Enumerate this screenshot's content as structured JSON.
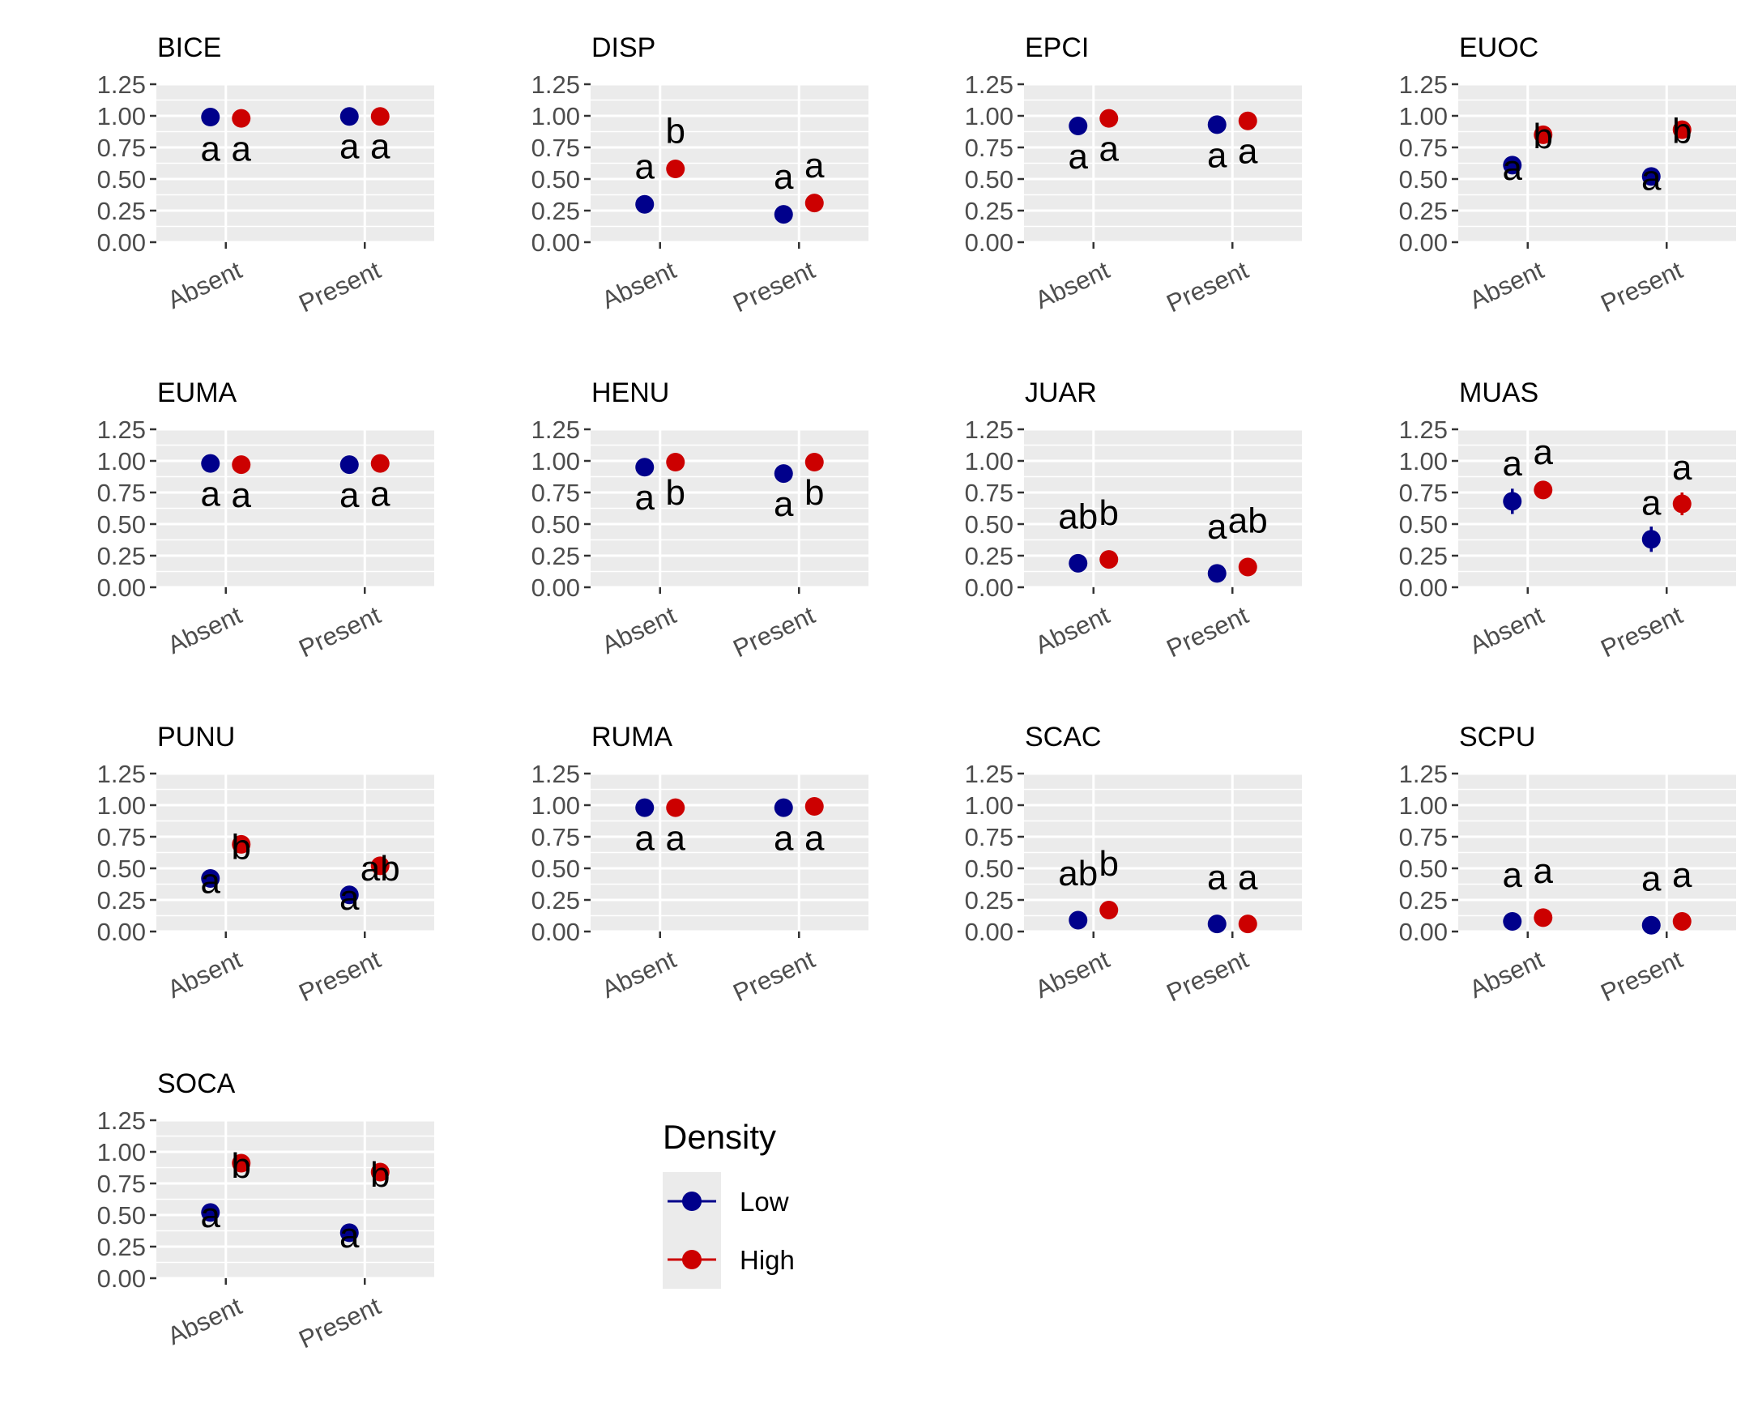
{
  "chart_data": {
    "type": "scatter",
    "description_kind": "faceted point-range plot",
    "categories": [
      "Absent",
      "Present"
    ],
    "ylim": [
      0,
      1.25
    ],
    "yticks": [
      "0.00",
      "0.25",
      "0.50",
      "0.75",
      "1.00",
      "1.25"
    ],
    "grid": true,
    "legend": {
      "title": "Density",
      "placement": "bottom-center",
      "entries": [
        {
          "name": "Low",
          "color": "#00008B"
        },
        {
          "name": "High",
          "color": "#CC0000"
        }
      ]
    },
    "series_names": [
      "Low",
      "High"
    ],
    "panels": [
      {
        "title": "BICE",
        "values": {
          "Low": [
            0.99,
            0.995
          ],
          "High": [
            0.98,
            0.995
          ]
        },
        "err": {
          "Low": [
            0,
            0
          ],
          "High": [
            0,
            0
          ]
        },
        "letters": {
          "Low": [
            "a",
            "a"
          ],
          "High": [
            "a",
            "a"
          ]
        },
        "letter_y": {
          "Low": [
            0.74,
            0.76
          ],
          "High": [
            0.74,
            0.76
          ]
        }
      },
      {
        "title": "DISP",
        "values": {
          "Low": [
            0.3,
            0.22
          ],
          "High": [
            0.58,
            0.31
          ]
        },
        "err": {
          "Low": [
            0,
            0
          ],
          "High": [
            0.02,
            0
          ]
        },
        "letters": {
          "Low": [
            "a",
            "a"
          ],
          "High": [
            "b",
            "a"
          ]
        },
        "letter_y": {
          "Low": [
            0.6,
            0.52
          ],
          "High": [
            0.88,
            0.61
          ]
        }
      },
      {
        "title": "EPCI",
        "values": {
          "Low": [
            0.92,
            0.93
          ],
          "High": [
            0.98,
            0.96
          ]
        },
        "err": {
          "Low": [
            0,
            0
          ],
          "High": [
            0,
            0
          ]
        },
        "letters": {
          "Low": [
            "a",
            "a"
          ],
          "High": [
            "a",
            "a"
          ]
        },
        "letter_y": {
          "Low": [
            0.68,
            0.69
          ],
          "High": [
            0.74,
            0.72
          ]
        }
      },
      {
        "title": "EUOC",
        "values": {
          "Low": [
            0.61,
            0.52
          ],
          "High": [
            0.85,
            0.89
          ]
        },
        "err": {
          "Low": [
            0,
            0
          ],
          "High": [
            0,
            0
          ]
        },
        "letters": {
          "Low": [
            "a",
            "a"
          ],
          "High": [
            "b",
            "b"
          ]
        },
        "letter_y": {
          "Low": [
            0.59,
            0.51
          ],
          "High": [
            0.84,
            0.88
          ]
        }
      },
      {
        "title": "EUMA",
        "values": {
          "Low": [
            0.98,
            0.97
          ],
          "High": [
            0.97,
            0.98
          ]
        },
        "err": {
          "Low": [
            0,
            0
          ],
          "High": [
            0,
            0
          ]
        },
        "letters": {
          "Low": [
            "a",
            "a"
          ],
          "High": [
            "a",
            "a"
          ]
        },
        "letter_y": {
          "Low": [
            0.74,
            0.73
          ],
          "High": [
            0.73,
            0.74
          ]
        }
      },
      {
        "title": "HENU",
        "values": {
          "Low": [
            0.95,
            0.9
          ],
          "High": [
            0.99,
            0.99
          ]
        },
        "err": {
          "Low": [
            0,
            0
          ],
          "High": [
            0,
            0
          ]
        },
        "letters": {
          "Low": [
            "a",
            "a"
          ],
          "High": [
            "b",
            "b"
          ]
        },
        "letter_y": {
          "Low": [
            0.71,
            0.66
          ],
          "High": [
            0.75,
            0.75
          ]
        }
      },
      {
        "title": "JUAR",
        "values": {
          "Low": [
            0.19,
            0.11
          ],
          "High": [
            0.22,
            0.16
          ]
        },
        "err": {
          "Low": [
            0,
            0
          ],
          "High": [
            0,
            0
          ]
        },
        "letters": {
          "Low": [
            "ab",
            "a"
          ],
          "High": [
            "b",
            "ab"
          ]
        },
        "letter_y": {
          "Low": [
            0.56,
            0.48
          ],
          "High": [
            0.59,
            0.53
          ]
        }
      },
      {
        "title": "MUAS",
        "values": {
          "Low": [
            0.68,
            0.38
          ],
          "High": [
            0.77,
            0.66
          ]
        },
        "err": {
          "Low": [
            0.1,
            0.1
          ],
          "High": [
            0.07,
            0.09
          ]
        },
        "letters": {
          "Low": [
            "a",
            "a"
          ],
          "High": [
            "a",
            "a"
          ]
        },
        "letter_y": {
          "Low": [
            0.98,
            0.67
          ],
          "High": [
            1.07,
            0.95
          ]
        }
      },
      {
        "title": "PUNU",
        "values": {
          "Low": [
            0.42,
            0.29
          ],
          "High": [
            0.69,
            0.52
          ]
        },
        "err": {
          "Low": [
            0,
            0
          ],
          "High": [
            0,
            0
          ]
        },
        "letters": {
          "Low": [
            "a",
            "a"
          ],
          "High": [
            "b",
            "ab"
          ]
        },
        "letter_y": {
          "Low": [
            0.4,
            0.27
          ],
          "High": [
            0.67,
            0.5
          ]
        }
      },
      {
        "title": "RUMA",
        "values": {
          "Low": [
            0.98,
            0.98
          ],
          "High": [
            0.98,
            0.99
          ]
        },
        "err": {
          "Low": [
            0,
            0
          ],
          "High": [
            0,
            0
          ]
        },
        "letters": {
          "Low": [
            "a",
            "a"
          ],
          "High": [
            "a",
            "a"
          ]
        },
        "letter_y": {
          "Low": [
            0.74,
            0.74
          ],
          "High": [
            0.74,
            0.74
          ]
        }
      },
      {
        "title": "SCAC",
        "values": {
          "Low": [
            0.09,
            0.06
          ],
          "High": [
            0.17,
            0.06
          ]
        },
        "err": {
          "Low": [
            0,
            0
          ],
          "High": [
            0,
            0
          ]
        },
        "letters": {
          "Low": [
            "ab",
            "a"
          ],
          "High": [
            "b",
            "a"
          ]
        },
        "letter_y": {
          "Low": [
            0.46,
            0.43
          ],
          "High": [
            0.54,
            0.43
          ]
        }
      },
      {
        "title": "SCPU",
        "values": {
          "Low": [
            0.08,
            0.05
          ],
          "High": [
            0.11,
            0.08
          ]
        },
        "err": {
          "Low": [
            0,
            0
          ],
          "High": [
            0,
            0
          ]
        },
        "letters": {
          "Low": [
            "a",
            "a"
          ],
          "High": [
            "a",
            "a"
          ]
        },
        "letter_y": {
          "Low": [
            0.45,
            0.42
          ],
          "High": [
            0.48,
            0.45
          ]
        }
      },
      {
        "title": "SOCA",
        "values": {
          "Low": [
            0.52,
            0.36
          ],
          "High": [
            0.91,
            0.84
          ]
        },
        "err": {
          "Low": [
            0,
            0
          ],
          "High": [
            0,
            0
          ]
        },
        "letters": {
          "Low": [
            "a",
            "a"
          ],
          "High": [
            "b",
            "b"
          ]
        },
        "letter_y": {
          "Low": [
            0.5,
            0.34
          ],
          "High": [
            0.89,
            0.82
          ]
        }
      }
    ]
  }
}
